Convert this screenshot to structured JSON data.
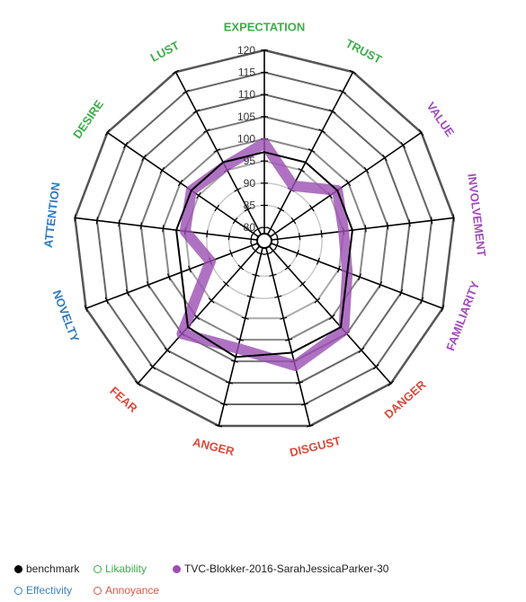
{
  "colors": {
    "benchmark": "#000000",
    "likability": "#3cae49",
    "effectivity": "#3d7fbf",
    "annoyance": "#e05543",
    "series": "#9b4fb3",
    "attention_label": "#2f7ac0",
    "trust_label": "#3cae49",
    "value_label": "#a24bbd",
    "fear_label": "#e0473a"
  },
  "chart_data": {
    "type": "radar",
    "axes": [
      "EXPECTATION",
      "TRUST",
      "VALUE",
      "INVOLVEMENT",
      "FAMILIARITY",
      "DANGER",
      "DISGUST",
      "ANGER",
      "FEAR",
      "NOVELTY",
      "ATTENTION",
      "DESIRE",
      "LUST"
    ],
    "axis_groups": [
      "likability",
      "likability",
      "involvement",
      "involvement",
      "involvement",
      "annoyance",
      "annoyance",
      "annoyance",
      "annoyance",
      "effectivity",
      "effectivity",
      "likability",
      "likability"
    ],
    "ticks": [
      80,
      85,
      90,
      95,
      100,
      105,
      110,
      115,
      120
    ],
    "range": [
      77,
      122
    ],
    "series": [
      {
        "name": "benchmark",
        "values": [
          97,
          97,
          97,
          97,
          97,
          103,
          103,
          104,
          103,
          97,
          97,
          97,
          97
        ]
      },
      {
        "name": "TVC-Blokker-2016-SarahJessicaParker-30",
        "values": [
          99,
          91,
          97,
          95,
          97,
          104,
          106,
          102,
          105,
          90,
          95,
          97,
          96
        ]
      }
    ]
  },
  "legend": {
    "benchmark": "benchmark",
    "likability": "Likability",
    "series": "TVC-Blokker-2016-SarahJessicaParker-30",
    "effectivity": "Effectivity",
    "annoyance": "Annoyance"
  }
}
